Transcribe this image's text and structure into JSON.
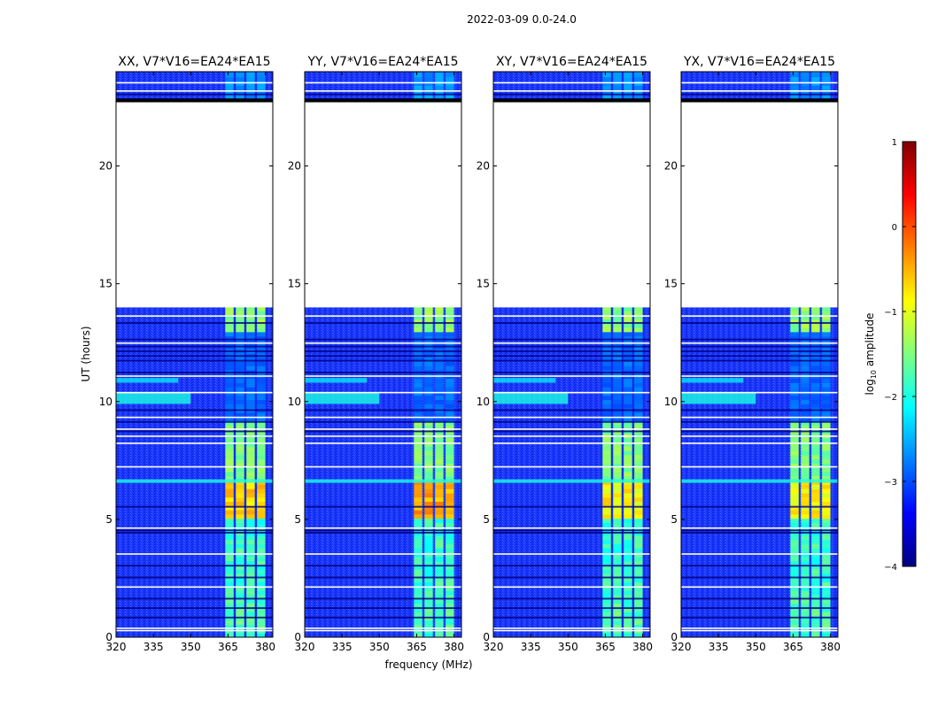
{
  "figure": {
    "suptitle": "2022-03-09 0.0-24.0",
    "xlabel": "frequency (MHz)",
    "ylabel": "UT (hours)"
  },
  "colorbar": {
    "label_prefix": "log",
    "label_sub": "10",
    "label_suffix": " amplitude",
    "range": [
      -4,
      1
    ],
    "ticks": [
      1,
      0,
      -1,
      -2,
      -3,
      -4
    ],
    "tick_labels": [
      "1",
      "0",
      "−1",
      "−2",
      "−3",
      "−4"
    ],
    "colormap": "jet",
    "colors": [
      "#00007f",
      "#0000ff",
      "#007fff",
      "#00ffff",
      "#7fff7f",
      "#ffff00",
      "#ff7f00",
      "#ff0000",
      "#7f0000"
    ]
  },
  "chart_data": [
    {
      "type": "heatmap",
      "title": "XX, V7*V16=EA24*EA15",
      "xlim": [
        320,
        383
      ],
      "ylim": [
        0,
        24
      ],
      "xticks": [
        320,
        335,
        350,
        365,
        380
      ],
      "xtick_labels": [
        "320",
        "335",
        "350",
        "365",
        "380"
      ],
      "yticks": [
        0,
        5,
        10,
        15,
        20
      ],
      "ytick_labels": [
        "0",
        "5",
        "10",
        "15",
        "20"
      ],
      "no_data_hours": [
        [
          14.0,
          22.7
        ]
      ],
      "rfi_band_mhz": [
        363.5,
        380.5
      ],
      "peak_level_log10": -0.4
    },
    {
      "type": "heatmap",
      "title": "YY, V7*V16=EA24*EA15",
      "xlim": [
        320,
        383
      ],
      "ylim": [
        0,
        24
      ],
      "xticks": [
        320,
        335,
        350,
        365,
        380
      ],
      "xtick_labels": [
        "320",
        "335",
        "350",
        "365",
        "380"
      ],
      "yticks": [
        0,
        5,
        10,
        15,
        20
      ],
      "ytick_labels": [
        "0",
        "5",
        "10",
        "15",
        "20"
      ],
      "no_data_hours": [
        [
          14.0,
          22.7
        ]
      ],
      "rfi_band_mhz": [
        363.5,
        380.5
      ],
      "peak_level_log10": -0.2
    },
    {
      "type": "heatmap",
      "title": "XY, V7*V16=EA24*EA15",
      "xlim": [
        320,
        383
      ],
      "ylim": [
        0,
        24
      ],
      "xticks": [
        320,
        335,
        350,
        365,
        380
      ],
      "xtick_labels": [
        "320",
        "335",
        "350",
        "365",
        "380"
      ],
      "yticks": [
        0,
        5,
        10,
        15,
        20
      ],
      "ytick_labels": [
        "0",
        "5",
        "10",
        "15",
        "20"
      ],
      "no_data_hours": [
        [
          14.0,
          22.7
        ]
      ],
      "rfi_band_mhz": [
        363.5,
        380.5
      ],
      "peak_level_log10": -0.6
    },
    {
      "type": "heatmap",
      "title": "YX, V7*V16=EA24*EA15",
      "xlim": [
        320,
        383
      ],
      "ylim": [
        0,
        24
      ],
      "xticks": [
        320,
        335,
        350,
        365,
        380
      ],
      "xtick_labels": [
        "320",
        "335",
        "350",
        "365",
        "380"
      ],
      "yticks": [
        0,
        5,
        10,
        15,
        20
      ],
      "ytick_labels": [
        "0",
        "5",
        "10",
        "15",
        "20"
      ],
      "no_data_hours": [
        [
          14.0,
          22.7
        ]
      ],
      "rfi_band_mhz": [
        363.5,
        380.5
      ],
      "peak_level_log10": -0.6
    }
  ]
}
